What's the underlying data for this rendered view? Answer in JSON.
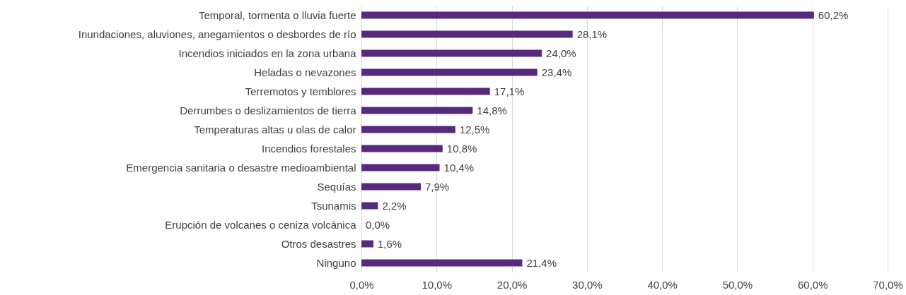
{
  "chart_data": {
    "type": "bar",
    "orientation": "horizontal",
    "categories": [
      "Temporal, tormenta o lluvia fuerte",
      "Inundaciones, aluviones, anegamientos o desbordes de río",
      "Incendios iniciados en la zona urbana",
      "Heladas o nevazones",
      "Terremotos y temblores",
      "Derrumbes o deslizamientos de tierra",
      "Temperaturas altas u olas de calor",
      "Incendios forestales",
      "Emergencia sanitaria o desastre medioambiental",
      "Sequías",
      "Tsunamis",
      "Erupción de volcanes o ceniza volcánica",
      "Otros desastres",
      "Ninguno"
    ],
    "values": [
      60.2,
      28.1,
      24.0,
      23.4,
      17.1,
      14.8,
      12.5,
      10.8,
      10.4,
      7.9,
      2.2,
      0.0,
      1.6,
      21.4
    ],
    "value_labels": [
      "60,2%",
      "28,1%",
      "24,0%",
      "23,4%",
      "17,1%",
      "14,8%",
      "12,5%",
      "10,8%",
      "10,4%",
      "7,9%",
      "2,2%",
      "0,0%",
      "1,6%",
      "21,4%"
    ],
    "color": "#582a7e",
    "xlim": [
      0,
      70
    ],
    "xticks": [
      {
        "value": 0,
        "label": "0,0%"
      },
      {
        "value": 10,
        "label": "10,0%"
      },
      {
        "value": 20,
        "label": "20,0%"
      },
      {
        "value": 30,
        "label": "30,0%"
      },
      {
        "value": 40,
        "label": "40,0%"
      },
      {
        "value": 50,
        "label": "50,0%"
      },
      {
        "value": 60,
        "label": "60,0%"
      },
      {
        "value": 70,
        "label": "70,0%"
      }
    ],
    "grid": "x"
  }
}
